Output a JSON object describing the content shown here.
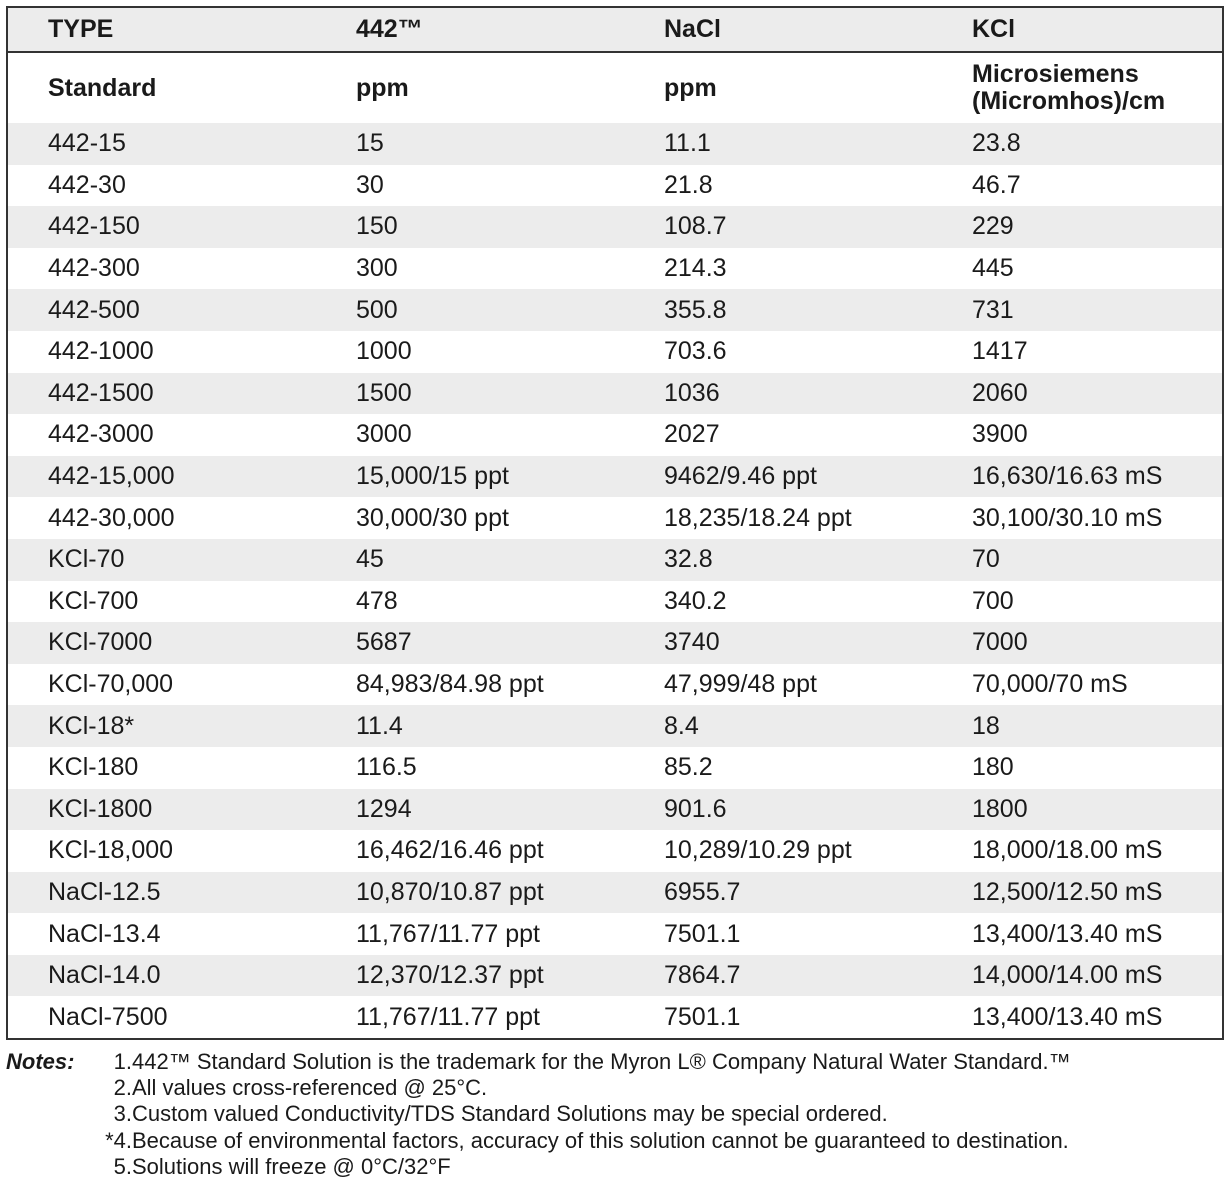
{
  "table": {
    "header": [
      [
        "TYPE",
        "442™",
        "NaCl",
        "KCl"
      ],
      [
        "Standard",
        "ppm",
        "ppm",
        "Microsiemens (Micromhos)/cm"
      ]
    ],
    "rows": [
      [
        "442-15",
        "15",
        "11.1",
        "23.8"
      ],
      [
        "442-30",
        "30",
        "21.8",
        "46.7"
      ],
      [
        "442-150",
        "150",
        "108.7",
        "229"
      ],
      [
        "442-300",
        "300",
        "214.3",
        "445"
      ],
      [
        "442-500",
        "500",
        "355.8",
        "731"
      ],
      [
        "442-1000",
        "1000",
        "703.6",
        "1417"
      ],
      [
        "442-1500",
        "1500",
        "1036",
        "2060"
      ],
      [
        "442-3000",
        "3000",
        "2027",
        "3900"
      ],
      [
        "442-15,000",
        "15,000/15 ppt",
        "9462/9.46 ppt",
        "16,630/16.63 mS"
      ],
      [
        "442-30,000",
        "30,000/30 ppt",
        "18,235/18.24 ppt",
        "30,100/30.10 mS"
      ],
      [
        "KCl-70",
        "45",
        "32.8",
        "70"
      ],
      [
        "KCl-700",
        "478",
        "340.2",
        "700"
      ],
      [
        "KCl-7000",
        "5687",
        "3740",
        "7000"
      ],
      [
        "KCl-70,000",
        "84,983/84.98 ppt",
        "47,999/48 ppt",
        "70,000/70 mS"
      ],
      [
        "KCl-18*",
        "11.4",
        "8.4",
        "18"
      ],
      [
        "KCl-180",
        "116.5",
        "85.2",
        "180"
      ],
      [
        "KCl-1800",
        "1294",
        "901.6",
        "1800"
      ],
      [
        "KCl-18,000",
        "16,462/16.46 ppt",
        "10,289/10.29 ppt",
        "18,000/18.00 mS"
      ],
      [
        "NaCl-12.5",
        "10,870/10.87 ppt",
        "6955.7",
        "12,500/12.50 mS"
      ],
      [
        "NaCl-13.4",
        "11,767/11.77 ppt",
        "7501.1",
        "13,400/13.40 mS"
      ],
      [
        "NaCl-14.0",
        "12,370/12.37 ppt",
        "7864.7",
        "14,000/14.00 mS"
      ],
      [
        "NaCl-7500",
        "11,767/11.77 ppt",
        "7501.1",
        "13,400/13.40 mS"
      ]
    ]
  },
  "notes": {
    "label": "Notes:",
    "items": [
      {
        "number": "1.",
        "text": "442™ Standard Solution is the trademark for the Myron L® Company Natural Water Standard.™"
      },
      {
        "number": "2.",
        "text": "All values cross-referenced @ 25°C."
      },
      {
        "number": "3.",
        "text": "Custom valued Conductivity/TDS Standard Solutions may be special ordered."
      },
      {
        "number": "*4.",
        "text": "Because of environmental factors, accuracy of this solution cannot be guaranteed to destination."
      },
      {
        "number": "5.",
        "text": "Solutions will freeze @ 0°C/32°F"
      }
    ]
  }
}
